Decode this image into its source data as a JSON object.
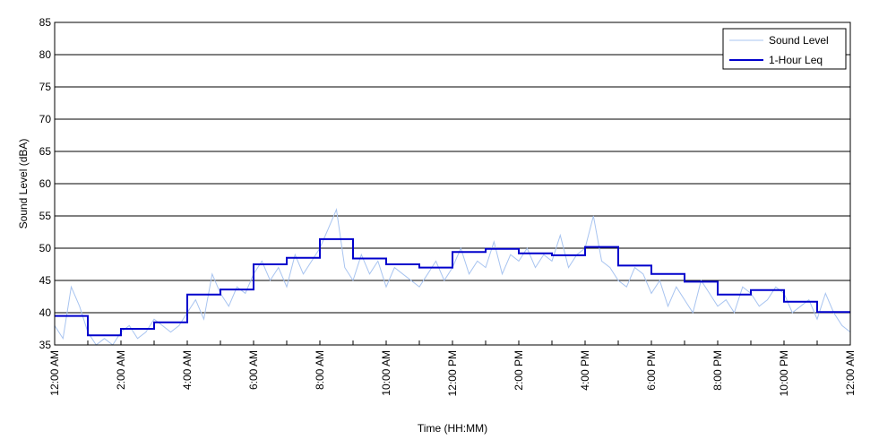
{
  "chart_data": {
    "type": "line",
    "title": "",
    "xlabel": "Time (HH:MM)",
    "ylabel": "Sound Level (dBA)",
    "xlim": [
      0,
      24
    ],
    "ylim": [
      35,
      85
    ],
    "yticks": [
      35,
      40,
      45,
      50,
      55,
      60,
      65,
      70,
      75,
      80,
      85
    ],
    "x_tick_values": [
      0,
      2,
      4,
      6,
      8,
      10,
      12,
      14,
      16,
      18,
      20,
      22,
      24
    ],
    "x_tick_labels": [
      "12:00 AM",
      "2:00 AM",
      "4:00 AM",
      "6:00 AM",
      "8:00 AM",
      "10:00 AM",
      "12:00 PM",
      "2:00 PM",
      "4:00 PM",
      "6:00 PM",
      "8:00 PM",
      "10:00 PM",
      "12:00 AM"
    ],
    "grid": "horizontal",
    "legend_position": "top-right",
    "series": [
      {
        "name": "Sound Level",
        "color": "#a8c4f0",
        "style": "thin-line",
        "x": [
          0.0,
          0.25,
          0.5,
          0.75,
          1.0,
          1.25,
          1.5,
          1.75,
          2.0,
          2.25,
          2.5,
          2.75,
          3.0,
          3.25,
          3.5,
          3.75,
          4.0,
          4.25,
          4.5,
          4.75,
          5.0,
          5.25,
          5.5,
          5.75,
          6.0,
          6.25,
          6.5,
          6.75,
          7.0,
          7.25,
          7.5,
          7.75,
          8.0,
          8.25,
          8.5,
          8.75,
          9.0,
          9.25,
          9.5,
          9.75,
          10.0,
          10.25,
          10.5,
          10.75,
          11.0,
          11.25,
          11.5,
          11.75,
          12.0,
          12.25,
          12.5,
          12.75,
          13.0,
          13.25,
          13.5,
          13.75,
          14.0,
          14.25,
          14.5,
          14.75,
          15.0,
          15.25,
          15.5,
          15.75,
          16.0,
          16.25,
          16.5,
          16.75,
          17.0,
          17.25,
          17.5,
          17.75,
          18.0,
          18.25,
          18.5,
          18.75,
          19.0,
          19.25,
          19.5,
          19.75,
          20.0,
          20.25,
          20.5,
          20.75,
          21.0,
          21.25,
          21.5,
          21.75,
          22.0,
          22.25,
          22.5,
          22.75,
          23.0,
          23.25,
          23.5,
          23.75,
          24.0
        ],
        "values": [
          38,
          36,
          44,
          41,
          37,
          35,
          36,
          35,
          37,
          38,
          36,
          37,
          39,
          38,
          37,
          38,
          40,
          42,
          39,
          46,
          43,
          41,
          44,
          43,
          46,
          48,
          45,
          47,
          44,
          49,
          46,
          48,
          50,
          53,
          56,
          47,
          45,
          49,
          46,
          48,
          44,
          47,
          46,
          45,
          44,
          46,
          48,
          45,
          47,
          50,
          46,
          48,
          47,
          51,
          46,
          49,
          48,
          50,
          47,
          49,
          48,
          52,
          47,
          49,
          50,
          55,
          48,
          47,
          45,
          44,
          47,
          46,
          43,
          45,
          41,
          44,
          42,
          40,
          45,
          43,
          41,
          42,
          40,
          44,
          43,
          41,
          42,
          44,
          43,
          40,
          41,
          42,
          39,
          43,
          40,
          38,
          37
        ]
      },
      {
        "name": "1-Hour Leq",
        "color": "#0000cc",
        "style": "step",
        "hours": [
          0,
          1,
          2,
          3,
          4,
          5,
          6,
          7,
          8,
          9,
          10,
          11,
          12,
          13,
          14,
          15,
          16,
          17,
          18,
          19,
          20,
          21,
          22,
          23
        ],
        "values": [
          39.5,
          36.5,
          37.5,
          38.5,
          42.8,
          43.6,
          47.5,
          48.5,
          51.4,
          48.4,
          47.5,
          47.0,
          49.4,
          49.9,
          49.2,
          48.9,
          50.2,
          47.3,
          46.0,
          44.8,
          42.8,
          43.5,
          41.7,
          40.1
        ]
      }
    ]
  }
}
